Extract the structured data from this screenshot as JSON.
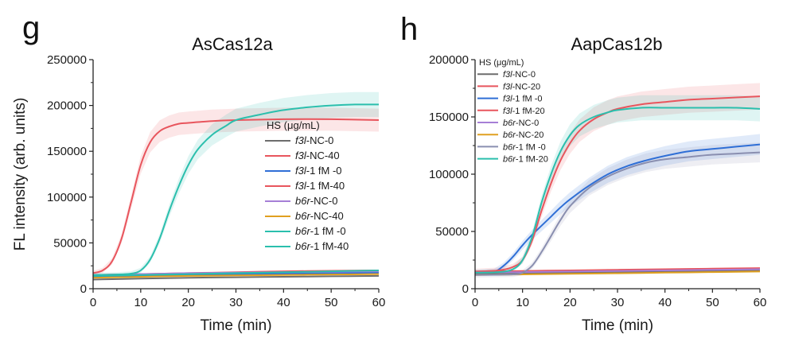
{
  "chart_data": [
    {
      "panel": "g",
      "type": "line",
      "title": "AsCas12a",
      "xlabel": "Time (min)",
      "ylabel": "FL intensity (arb. units)",
      "xlim": [
        0,
        60
      ],
      "ylim": [
        0,
        250000
      ],
      "xticks": [
        0,
        10,
        20,
        30,
        40,
        50,
        60
      ],
      "yticks": [
        0,
        50000,
        100000,
        150000,
        200000,
        250000
      ],
      "legend_title": "HS (μg/mL)",
      "legend_position": "center-right",
      "series": [
        {
          "name_italic": "f3l",
          "name_suffix": "-NC-0",
          "color": "#6d6d6d",
          "x": [
            0,
            10,
            20,
            30,
            40,
            50,
            60
          ],
          "y": [
            10000,
            11000,
            12000,
            12500,
            13000,
            13500,
            14000
          ]
        },
        {
          "name_italic": "f3l",
          "name_suffix": "-NC-40",
          "color": "#e8555d",
          "x": [
            0,
            10,
            20,
            30,
            40,
            50,
            60
          ],
          "y": [
            15000,
            16000,
            17000,
            18000,
            19000,
            19500,
            20000
          ]
        },
        {
          "name_italic": "f3l",
          "name_suffix": "-1 fM -0",
          "color": "#2f6fd6",
          "x": [
            0,
            10,
            20,
            30,
            40,
            50,
            60
          ],
          "y": [
            13000,
            14000,
            15000,
            16000,
            16500,
            17000,
            17500
          ]
        },
        {
          "name_italic": "f3l",
          "name_suffix": "-1 fM-40",
          "color": "#e8555d",
          "band": true,
          "x": [
            0,
            2,
            4,
            6,
            8,
            10,
            12,
            14,
            16,
            18,
            20,
            25,
            30,
            40,
            50,
            60
          ],
          "y": [
            17000,
            20000,
            30000,
            55000,
            95000,
            135000,
            160000,
            172000,
            177000,
            180000,
            181000,
            183000,
            184000,
            185000,
            185000,
            184000
          ]
        },
        {
          "name_italic": "b6r",
          "name_suffix": "-NC-0",
          "color": "#a67fd6",
          "x": [
            0,
            10,
            20,
            30,
            40,
            50,
            60
          ],
          "y": [
            15000,
            16000,
            17000,
            17500,
            18000,
            18500,
            19000
          ]
        },
        {
          "name_italic": "b6r",
          "name_suffix": "-NC-40",
          "color": "#e0a020",
          "x": [
            0,
            10,
            20,
            30,
            40,
            50,
            60
          ],
          "y": [
            12000,
            13000,
            14000,
            14500,
            15000,
            15500,
            16000
          ]
        },
        {
          "name_italic": "b6r",
          "name_suffix": "-1 fM -0",
          "color": "#2bbfad",
          "x": [
            0,
            10,
            20,
            30,
            40,
            50,
            60
          ],
          "y": [
            14000,
            15000,
            16000,
            17000,
            18000,
            19000,
            20000
          ]
        },
        {
          "name_italic": "b6r",
          "name_suffix": "-1 fM-40",
          "color": "#2bbfad",
          "band": true,
          "x": [
            0,
            5,
            8,
            10,
            12,
            14,
            16,
            18,
            20,
            22,
            25,
            28,
            30,
            35,
            40,
            45,
            50,
            55,
            60
          ],
          "y": [
            15000,
            15500,
            16500,
            20000,
            32000,
            55000,
            85000,
            112000,
            135000,
            152000,
            168000,
            178000,
            184000,
            190000,
            195000,
            198000,
            200000,
            201000,
            201000
          ]
        }
      ]
    },
    {
      "panel": "h",
      "type": "line",
      "title": "AapCas12b",
      "xlabel": "Time (min)",
      "ylabel": "",
      "xlim": [
        0,
        60
      ],
      "ylim": [
        0,
        200000
      ],
      "xticks": [
        0,
        10,
        20,
        30,
        40,
        50,
        60
      ],
      "yticks": [
        0,
        50000,
        100000,
        150000,
        200000
      ],
      "legend_title": "HS (μg/mL)",
      "legend_position": "top-left",
      "series": [
        {
          "name_italic": "f3l",
          "name_suffix": "-NC-0",
          "color": "#6d6d6d",
          "x": [
            0,
            10,
            20,
            30,
            40,
            50,
            60
          ],
          "y": [
            13000,
            13500,
            14000,
            14500,
            15000,
            15500,
            16000
          ]
        },
        {
          "name_italic": "f3l",
          "name_suffix": "-NC-20",
          "color": "#e8555d",
          "x": [
            0,
            10,
            20,
            30,
            40,
            50,
            60
          ],
          "y": [
            15000,
            15500,
            16000,
            16500,
            17000,
            17500,
            18000
          ]
        },
        {
          "name_italic": "f3l",
          "name_suffix": "-1 fM -0",
          "color": "#2f6fd6",
          "band": true,
          "x": [
            0,
            4,
            6,
            8,
            10,
            12,
            14,
            16,
            18,
            20,
            24,
            28,
            32,
            36,
            40,
            45,
            50,
            55,
            60
          ],
          "y": [
            14000,
            15000,
            20000,
            28000,
            38000,
            47000,
            55000,
            63000,
            71000,
            78000,
            90000,
            100000,
            107000,
            112000,
            116000,
            120000,
            122000,
            124000,
            126000
          ]
        },
        {
          "name_italic": "f3l",
          "name_suffix": "-1 fM-20",
          "color": "#e8555d",
          "band": true,
          "x": [
            0,
            5,
            8,
            10,
            12,
            14,
            16,
            18,
            20,
            22,
            25,
            28,
            30,
            35,
            40,
            45,
            50,
            55,
            60
          ],
          "y": [
            15000,
            16000,
            19000,
            25000,
            42000,
            68000,
            92000,
            112000,
            127000,
            138000,
            148000,
            154000,
            157000,
            161000,
            163000,
            165000,
            166000,
            167000,
            168000
          ]
        },
        {
          "name_italic": "b6r",
          "name_suffix": "-NC-0",
          "color": "#a67fd6",
          "x": [
            0,
            10,
            20,
            30,
            40,
            50,
            60
          ],
          "y": [
            14000,
            14500,
            15000,
            15500,
            16000,
            16500,
            17000
          ]
        },
        {
          "name_italic": "b6r",
          "name_suffix": "-NC-20",
          "color": "#e0a020",
          "x": [
            0,
            10,
            20,
            30,
            40,
            50,
            60
          ],
          "y": [
            12000,
            12500,
            13000,
            13500,
            14000,
            14500,
            15000
          ]
        },
        {
          "name_italic": "b6r",
          "name_suffix": "-1 fM -0",
          "color": "#8a8fb0",
          "band": true,
          "x": [
            0,
            8,
            10,
            12,
            14,
            16,
            18,
            20,
            24,
            28,
            32,
            36,
            40,
            45,
            50,
            55,
            60
          ],
          "y": [
            12000,
            12500,
            14000,
            20000,
            32000,
            46000,
            60000,
            72000,
            88000,
            98000,
            105000,
            110000,
            113000,
            115000,
            117000,
            118000,
            119000
          ]
        },
        {
          "name_italic": "b6r",
          "name_suffix": "-1 fM-20",
          "color": "#2bbfad",
          "band": true,
          "x": [
            0,
            5,
            8,
            10,
            12,
            14,
            16,
            18,
            20,
            22,
            25,
            28,
            30,
            35,
            40,
            45,
            50,
            55,
            60
          ],
          "y": [
            14000,
            14500,
            17000,
            25000,
            45000,
            75000,
            100000,
            120000,
            134000,
            143000,
            150000,
            154000,
            156000,
            158000,
            158000,
            158000,
            158000,
            158000,
            157000
          ]
        }
      ]
    }
  ]
}
